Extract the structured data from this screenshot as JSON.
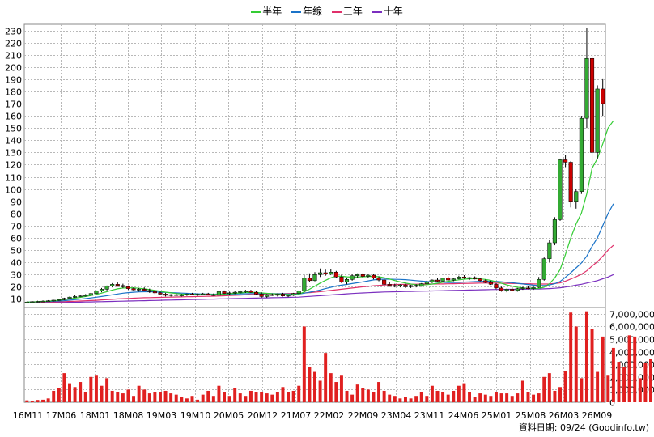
{
  "legend": [
    {
      "label": "半年",
      "color": "#33cc33"
    },
    {
      "label": "年線",
      "color": "#1a73c8"
    },
    {
      "label": "三年",
      "color": "#e0306a"
    },
    {
      "label": "十年",
      "color": "#7b2fbf"
    }
  ],
  "footer": "資料日期: 09/24  (Goodinfo.tw)",
  "chart_data": {
    "type": "candlestick+bar",
    "price_axis": {
      "ticks": [
        10,
        20,
        30,
        40,
        50,
        60,
        70,
        80,
        90,
        100,
        110,
        120,
        130,
        140,
        150,
        160,
        170,
        180,
        190,
        200,
        210,
        220,
        230
      ],
      "ylim": [
        3,
        235
      ]
    },
    "volume_axis": {
      "ticks": [
        "0",
        "1,000,000",
        "2,000,000",
        "3,000,000",
        "4,000,000",
        "5,000,000",
        "6,000,000",
        "7,000,000"
      ],
      "ylim": [
        0,
        7500000
      ]
    },
    "x_labels": [
      "16M11",
      "17M06",
      "18M01",
      "18M08",
      "19M03",
      "19M10",
      "20M05",
      "20M12",
      "21M07",
      "22M02",
      "22M09",
      "23M04",
      "23M11",
      "24M06",
      "25M01",
      "25M08",
      "26M03",
      "26M09"
    ],
    "up_color": "#33aa33",
    "down_color": "#cc0000",
    "candles": [
      {
        "o": 7.0,
        "h": 7.8,
        "l": 6.5,
        "c": 7.5
      },
      {
        "o": 7.5,
        "h": 8.2,
        "l": 7.0,
        "c": 7.8
      },
      {
        "o": 7.8,
        "h": 8.5,
        "l": 7.2,
        "c": 8.0
      },
      {
        "o": 8.0,
        "h": 8.8,
        "l": 7.5,
        "c": 8.2
      },
      {
        "o": 8.2,
        "h": 9.0,
        "l": 7.8,
        "c": 8.5
      },
      {
        "o": 8.5,
        "h": 9.2,
        "l": 8.0,
        "c": 9.0
      },
      {
        "o": 9.0,
        "h": 10.0,
        "l": 8.5,
        "c": 9.5
      },
      {
        "o": 9.5,
        "h": 11.0,
        "l": 9.0,
        "c": 10.5
      },
      {
        "o": 10.5,
        "h": 12.0,
        "l": 10.0,
        "c": 11.5
      },
      {
        "o": 11.5,
        "h": 13.0,
        "l": 11.0,
        "c": 12.0
      },
      {
        "o": 12.0,
        "h": 13.5,
        "l": 11.5,
        "c": 12.5
      },
      {
        "o": 12.5,
        "h": 14.0,
        "l": 12.0,
        "c": 13.0
      },
      {
        "o": 13.0,
        "h": 15.0,
        "l": 12.5,
        "c": 14.5
      },
      {
        "o": 14.5,
        "h": 17.0,
        "l": 14.0,
        "c": 16.5
      },
      {
        "o": 16.5,
        "h": 19.0,
        "l": 15.5,
        "c": 18.0
      },
      {
        "o": 18.0,
        "h": 21.0,
        "l": 17.0,
        "c": 20.5
      },
      {
        "o": 20.5,
        "h": 23.0,
        "l": 19.5,
        "c": 22.0
      },
      {
        "o": 22.0,
        "h": 23.5,
        "l": 20.0,
        "c": 21.0
      },
      {
        "o": 21.0,
        "h": 22.5,
        "l": 19.0,
        "c": 20.0
      },
      {
        "o": 20.0,
        "h": 21.0,
        "l": 17.5,
        "c": 18.5
      },
      {
        "o": 18.5,
        "h": 19.5,
        "l": 16.5,
        "c": 17.5
      },
      {
        "o": 17.5,
        "h": 19.0,
        "l": 16.0,
        "c": 18.0
      },
      {
        "o": 18.0,
        "h": 19.5,
        "l": 16.5,
        "c": 17.0
      },
      {
        "o": 17.0,
        "h": 18.5,
        "l": 15.0,
        "c": 16.0
      },
      {
        "o": 16.0,
        "h": 17.0,
        "l": 14.0,
        "c": 15.0
      },
      {
        "o": 15.0,
        "h": 16.0,
        "l": 13.0,
        "c": 14.0
      },
      {
        "o": 14.0,
        "h": 15.0,
        "l": 12.0,
        "c": 13.0
      },
      {
        "o": 13.0,
        "h": 14.0,
        "l": 12.0,
        "c": 13.5
      },
      {
        "o": 13.5,
        "h": 14.5,
        "l": 12.5,
        "c": 13.0
      },
      {
        "o": 13.0,
        "h": 14.0,
        "l": 12.0,
        "c": 13.2
      },
      {
        "o": 13.2,
        "h": 14.5,
        "l": 12.5,
        "c": 14.0
      },
      {
        "o": 14.0,
        "h": 15.0,
        "l": 13.0,
        "c": 13.5
      },
      {
        "o": 13.5,
        "h": 14.5,
        "l": 12.5,
        "c": 13.8
      },
      {
        "o": 13.8,
        "h": 15.0,
        "l": 13.0,
        "c": 14.2
      },
      {
        "o": 14.2,
        "h": 15.0,
        "l": 13.0,
        "c": 13.5
      },
      {
        "o": 13.5,
        "h": 14.5,
        "l": 12.5,
        "c": 13.0
      },
      {
        "o": 13.0,
        "h": 17.0,
        "l": 12.5,
        "c": 16.0
      },
      {
        "o": 16.0,
        "h": 17.0,
        "l": 14.0,
        "c": 14.5
      },
      {
        "o": 14.5,
        "h": 16.0,
        "l": 13.5,
        "c": 15.0
      },
      {
        "o": 15.0,
        "h": 16.5,
        "l": 14.0,
        "c": 15.5
      },
      {
        "o": 15.5,
        "h": 17.0,
        "l": 14.5,
        "c": 16.0
      },
      {
        "o": 16.0,
        "h": 17.5,
        "l": 15.0,
        "c": 16.5
      },
      {
        "o": 16.5,
        "h": 17.5,
        "l": 15.0,
        "c": 15.5
      },
      {
        "o": 15.5,
        "h": 16.5,
        "l": 13.0,
        "c": 14.0
      },
      {
        "o": 14.0,
        "h": 15.5,
        "l": 11.0,
        "c": 12.0
      },
      {
        "o": 12.0,
        "h": 14.0,
        "l": 11.0,
        "c": 13.5
      },
      {
        "o": 13.5,
        "h": 14.5,
        "l": 12.5,
        "c": 13.0
      },
      {
        "o": 13.0,
        "h": 14.5,
        "l": 12.0,
        "c": 14.0
      },
      {
        "o": 14.0,
        "h": 15.0,
        "l": 12.0,
        "c": 12.5
      },
      {
        "o": 12.5,
        "h": 13.5,
        "l": 11.5,
        "c": 13.0
      },
      {
        "o": 13.0,
        "h": 15.0,
        "l": 12.5,
        "c": 14.5
      },
      {
        "o": 14.5,
        "h": 17.0,
        "l": 14.0,
        "c": 16.5
      },
      {
        "o": 16.5,
        "h": 30.0,
        "l": 16.0,
        "c": 27.0
      },
      {
        "o": 27.0,
        "h": 31.0,
        "l": 24.0,
        "c": 25.0
      },
      {
        "o": 25.0,
        "h": 32.0,
        "l": 24.5,
        "c": 30.0
      },
      {
        "o": 30.0,
        "h": 35.0,
        "l": 28.0,
        "c": 31.5
      },
      {
        "o": 31.5,
        "h": 34.0,
        "l": 29.0,
        "c": 30.5
      },
      {
        "o": 30.5,
        "h": 34.5,
        "l": 29.5,
        "c": 32.0
      },
      {
        "o": 32.0,
        "h": 33.0,
        "l": 27.0,
        "c": 28.0
      },
      {
        "o": 28.0,
        "h": 30.0,
        "l": 23.0,
        "c": 24.0
      },
      {
        "o": 24.0,
        "h": 27.0,
        "l": 22.0,
        "c": 26.0
      },
      {
        "o": 26.0,
        "h": 30.0,
        "l": 25.0,
        "c": 29.0
      },
      {
        "o": 29.0,
        "h": 31.0,
        "l": 27.0,
        "c": 30.0
      },
      {
        "o": 30.0,
        "h": 31.0,
        "l": 27.5,
        "c": 28.5
      },
      {
        "o": 28.5,
        "h": 30.0,
        "l": 27.0,
        "c": 29.5
      },
      {
        "o": 29.5,
        "h": 30.5,
        "l": 26.0,
        "c": 27.0
      },
      {
        "o": 27.0,
        "h": 28.5,
        "l": 24.5,
        "c": 25.5
      },
      {
        "o": 25.5,
        "h": 27.0,
        "l": 21.0,
        "c": 22.0
      },
      {
        "o": 22.0,
        "h": 24.0,
        "l": 20.0,
        "c": 21.0
      },
      {
        "o": 21.0,
        "h": 22.5,
        "l": 19.5,
        "c": 20.5
      },
      {
        "o": 20.5,
        "h": 22.0,
        "l": 19.5,
        "c": 21.5
      },
      {
        "o": 21.5,
        "h": 22.5,
        "l": 19.0,
        "c": 20.0
      },
      {
        "o": 20.0,
        "h": 21.5,
        "l": 19.0,
        "c": 21.0
      },
      {
        "o": 21.0,
        "h": 22.0,
        "l": 19.5,
        "c": 20.5
      },
      {
        "o": 20.5,
        "h": 23.0,
        "l": 20.0,
        "c": 22.5
      },
      {
        "o": 22.5,
        "h": 25.0,
        "l": 22.0,
        "c": 24.0
      },
      {
        "o": 24.0,
        "h": 26.0,
        "l": 23.0,
        "c": 25.5
      },
      {
        "o": 25.5,
        "h": 27.0,
        "l": 24.0,
        "c": 24.5
      },
      {
        "o": 24.5,
        "h": 27.5,
        "l": 24.0,
        "c": 27.0
      },
      {
        "o": 27.0,
        "h": 28.5,
        "l": 25.0,
        "c": 25.5
      },
      {
        "o": 25.5,
        "h": 27.0,
        "l": 24.5,
        "c": 26.5
      },
      {
        "o": 26.5,
        "h": 29.0,
        "l": 26.0,
        "c": 28.0
      },
      {
        "o": 28.0,
        "h": 29.5,
        "l": 26.5,
        "c": 27.0
      },
      {
        "o": 27.0,
        "h": 28.0,
        "l": 25.5,
        "c": 27.5
      },
      {
        "o": 27.5,
        "h": 28.5,
        "l": 26.0,
        "c": 26.5
      },
      {
        "o": 26.5,
        "h": 27.5,
        "l": 24.5,
        "c": 25.0
      },
      {
        "o": 25.0,
        "h": 26.0,
        "l": 23.0,
        "c": 23.5
      },
      {
        "o": 23.5,
        "h": 25.0,
        "l": 21.5,
        "c": 22.0
      },
      {
        "o": 22.0,
        "h": 23.0,
        "l": 18.0,
        "c": 19.0
      },
      {
        "o": 19.0,
        "h": 20.0,
        "l": 16.0,
        "c": 17.0
      },
      {
        "o": 17.0,
        "h": 18.5,
        "l": 15.5,
        "c": 18.0
      },
      {
        "o": 18.0,
        "h": 19.5,
        "l": 16.5,
        "c": 17.0
      },
      {
        "o": 17.0,
        "h": 19.0,
        "l": 16.0,
        "c": 18.5
      },
      {
        "o": 18.5,
        "h": 20.0,
        "l": 17.5,
        "c": 19.0
      },
      {
        "o": 19.0,
        "h": 20.5,
        "l": 18.0,
        "c": 18.5
      },
      {
        "o": 18.5,
        "h": 20.0,
        "l": 17.5,
        "c": 19.5
      },
      {
        "o": 19.5,
        "h": 28.0,
        "l": 19.0,
        "c": 26.0
      },
      {
        "o": 26.0,
        "h": 44.0,
        "l": 25.0,
        "c": 43.0
      },
      {
        "o": 43.0,
        "h": 58.0,
        "l": 40.0,
        "c": 56.0
      },
      {
        "o": 56.0,
        "h": 77.0,
        "l": 54.0,
        "c": 75.0
      },
      {
        "o": 75.0,
        "h": 125.0,
        "l": 74.0,
        "c": 124.0
      },
      {
        "o": 124.0,
        "h": 128.0,
        "l": 118.0,
        "c": 122.0
      },
      {
        "o": 122.0,
        "h": 123.0,
        "l": 85.0,
        "c": 90.0
      },
      {
        "o": 90.0,
        "h": 100.0,
        "l": 84.0,
        "c": 98.0
      },
      {
        "o": 98.0,
        "h": 160.0,
        "l": 96.0,
        "c": 158.0
      },
      {
        "o": 158.0,
        "h": 232.0,
        "l": 150.0,
        "c": 207.0
      },
      {
        "o": 207.0,
        "h": 210.0,
        "l": 118.0,
        "c": 130.0
      },
      {
        "o": 130.0,
        "h": 185.0,
        "l": 125.0,
        "c": 182.0
      },
      {
        "o": 182.0,
        "h": 190.0,
        "l": 160.0,
        "c": 170.0
      }
    ],
    "volume": [
      150000,
      120000,
      180000,
      200000,
      300000,
      900000,
      1100000,
      2300000,
      1500000,
      1200000,
      1600000,
      800000,
      2000000,
      2100000,
      1300000,
      1900000,
      900000,
      800000,
      700000,
      1000000,
      500000,
      1300000,
      1000000,
      700000,
      800000,
      800000,
      900000,
      700000,
      600000,
      400000,
      300000,
      500000,
      200000,
      600000,
      900000,
      500000,
      1300000,
      800000,
      500000,
      1100000,
      700000,
      500000,
      900000,
      800000,
      800000,
      700000,
      600000,
      800000,
      1200000,
      800000,
      900000,
      1300000,
      6000000,
      2800000,
      2400000,
      1700000,
      3900000,
      2300000,
      1600000,
      2100000,
      900000,
      600000,
      1400000,
      1100000,
      1000000,
      800000,
      1600000,
      900000,
      600000,
      500000,
      300000,
      400000,
      300000,
      500000,
      800000,
      500000,
      1300000,
      900000,
      800000,
      600000,
      900000,
      1300000,
      1500000,
      800000,
      400000,
      700000,
      600000,
      500000,
      800000,
      700000,
      700000,
      500000,
      700000,
      1700000,
      800000,
      600000,
      700000,
      2000000,
      2300000,
      900000,
      1200000,
      2500000,
      7100000,
      6000000,
      1900000,
      7200000,
      5800000,
      2400000,
      5200000,
      2100000,
      4300000,
      3200000,
      2800000,
      5300000,
      5200000,
      1900000,
      3100000,
      3400000,
      1900000
    ],
    "ma_half": [
      7.5,
      7.6,
      7.8,
      8.0,
      8.2,
      8.5,
      8.9,
      9.4,
      10.0,
      10.7,
      11.3,
      12.0,
      12.8,
      13.7,
      14.8,
      16.0,
      17.3,
      18.3,
      19.0,
      19.2,
      19.1,
      18.8,
      18.3,
      17.7,
      17.0,
      16.3,
      15.6,
      15.0,
      14.5,
      14.1,
      13.9,
      13.8,
      13.7,
      13.7,
      13.7,
      13.6,
      13.9,
      14.1,
      14.3,
      14.6,
      14.9,
      15.3,
      15.4,
      15.3,
      14.9,
      14.6,
      14.3,
      14.1,
      13.8,
      13.6,
      13.5,
      13.8,
      15.8,
      18.0,
      20.5,
      23.0,
      25.3,
      27.3,
      28.7,
      28.6,
      28.1,
      27.9,
      28.0,
      28.2,
      28.4,
      28.5,
      28.2,
      27.4,
      26.3,
      25.1,
      24.0,
      23.0,
      22.2,
      21.6,
      21.4,
      21.7,
      22.2,
      22.8,
      23.7,
      24.5,
      25.1,
      25.7,
      26.2,
      26.5,
      26.6,
      26.4,
      26.0,
      25.2,
      24.1,
      22.8,
      21.5,
      20.5,
      19.6,
      19.1,
      18.7,
      18.5,
      18.6,
      19.6,
      22.5,
      27.2,
      34.1,
      46.5,
      60.0,
      71.5,
      80.5,
      96.0,
      117.0,
      125.0,
      137.0,
      150.0,
      156.0
    ],
    "ma_year": [
      7.4,
      7.5,
      7.6,
      7.7,
      7.9,
      8.1,
      8.3,
      8.6,
      9.0,
      9.4,
      9.8,
      10.3,
      10.8,
      11.4,
      12.0,
      12.7,
      13.4,
      14.1,
      14.7,
      15.2,
      15.5,
      15.8,
      15.9,
      15.9,
      15.8,
      15.6,
      15.4,
      15.2,
      15.0,
      14.8,
      14.6,
      14.4,
      14.2,
      14.1,
      14.0,
      13.9,
      14.0,
      14.0,
      14.0,
      14.1,
      14.2,
      14.3,
      14.4,
      14.5,
      14.5,
      14.5,
      14.4,
      14.3,
      14.2,
      14.1,
      14.0,
      14.0,
      14.7,
      15.5,
      16.4,
      17.4,
      18.5,
      19.6,
      20.6,
      21.3,
      21.9,
      22.6,
      23.3,
      24.0,
      24.8,
      25.6,
      26.0,
      26.2,
      26.2,
      26.1,
      26.0,
      25.8,
      25.4,
      25.0,
      24.6,
      24.3,
      24.0,
      23.8,
      23.6,
      23.5,
      23.5,
      23.6,
      23.8,
      24.0,
      24.2,
      24.4,
      24.5,
      24.5,
      24.4,
      24.1,
      23.7,
      23.3,
      22.8,
      22.3,
      21.8,
      21.3,
      21.0,
      21.0,
      21.4,
      22.5,
      24.3,
      27.7,
      31.5,
      35.5,
      39.5,
      45.0,
      53.0,
      60.0,
      70.0,
      80.0,
      88.0
    ],
    "ma_3y": [
      7.2,
      7.3,
      7.3,
      7.4,
      7.5,
      7.6,
      7.7,
      7.8,
      8.0,
      8.1,
      8.3,
      8.5,
      8.7,
      8.9,
      9.2,
      9.4,
      9.7,
      10.0,
      10.2,
      10.4,
      10.6,
      10.8,
      11.0,
      11.1,
      11.2,
      11.3,
      11.4,
      11.5,
      11.6,
      11.7,
      11.8,
      11.9,
      12.0,
      12.1,
      12.2,
      12.3,
      12.4,
      12.6,
      12.8,
      13.0,
      13.2,
      13.4,
      13.6,
      13.8,
      14.0,
      14.1,
      14.2,
      14.3,
      14.4,
      14.5,
      14.5,
      14.6,
      14.9,
      15.2,
      15.6,
      16.0,
      16.5,
      17.0,
      17.5,
      18.0,
      18.5,
      19.0,
      19.5,
      20.0,
      20.4,
      20.8,
      21.1,
      21.4,
      21.6,
      21.8,
      21.9,
      22.0,
      22.1,
      22.1,
      22.2,
      22.2,
      22.2,
      22.3,
      22.3,
      22.4,
      22.5,
      22.6,
      22.7,
      22.8,
      22.9,
      23.0,
      23.0,
      23.0,
      23.0,
      22.9,
      22.8,
      22.7,
      22.6,
      22.5,
      22.4,
      22.3,
      22.2,
      22.2,
      22.3,
      22.6,
      23.2,
      24.6,
      26.3,
      28.2,
      30.3,
      33.0,
      37.0,
      40.5,
      45.0,
      50.0,
      54.0
    ],
    "ma_10y": [
      6.8,
      6.9,
      6.9,
      7.0,
      7.0,
      7.1,
      7.1,
      7.2,
      7.3,
      7.3,
      7.4,
      7.5,
      7.6,
      7.7,
      7.8,
      7.9,
      8.0,
      8.1,
      8.2,
      8.3,
      8.4,
      8.5,
      8.6,
      8.7,
      8.8,
      8.9,
      9.0,
      9.1,
      9.2,
      9.3,
      9.4,
      9.5,
      9.6,
      9.7,
      9.8,
      9.9,
      10.0,
      10.1,
      10.2,
      10.3,
      10.4,
      10.5,
      10.6,
      10.7,
      10.8,
      10.9,
      11.0,
      11.1,
      11.2,
      11.3,
      11.4,
      11.5,
      11.8,
      12.1,
      12.4,
      12.7,
      13.0,
      13.3,
      13.6,
      13.9,
      14.2,
      14.5,
      14.7,
      14.9,
      15.1,
      15.3,
      15.5,
      15.7,
      15.8,
      15.9,
      16.0,
      16.1,
      16.2,
      16.3,
      16.4,
      16.5,
      16.6,
      16.7,
      16.8,
      16.9,
      17.0,
      17.1,
      17.2,
      17.3,
      17.4,
      17.5,
      17.6,
      17.7,
      17.8,
      17.8,
      17.9,
      17.9,
      18.0,
      18.0,
      18.1,
      18.1,
      18.2,
      18.3,
      18.5,
      18.8,
      19.2,
      19.8,
      20.5,
      21.3,
      22.0,
      23.0,
      24.0,
      25.0,
      26.5,
      28.0,
      30.0
    ]
  }
}
